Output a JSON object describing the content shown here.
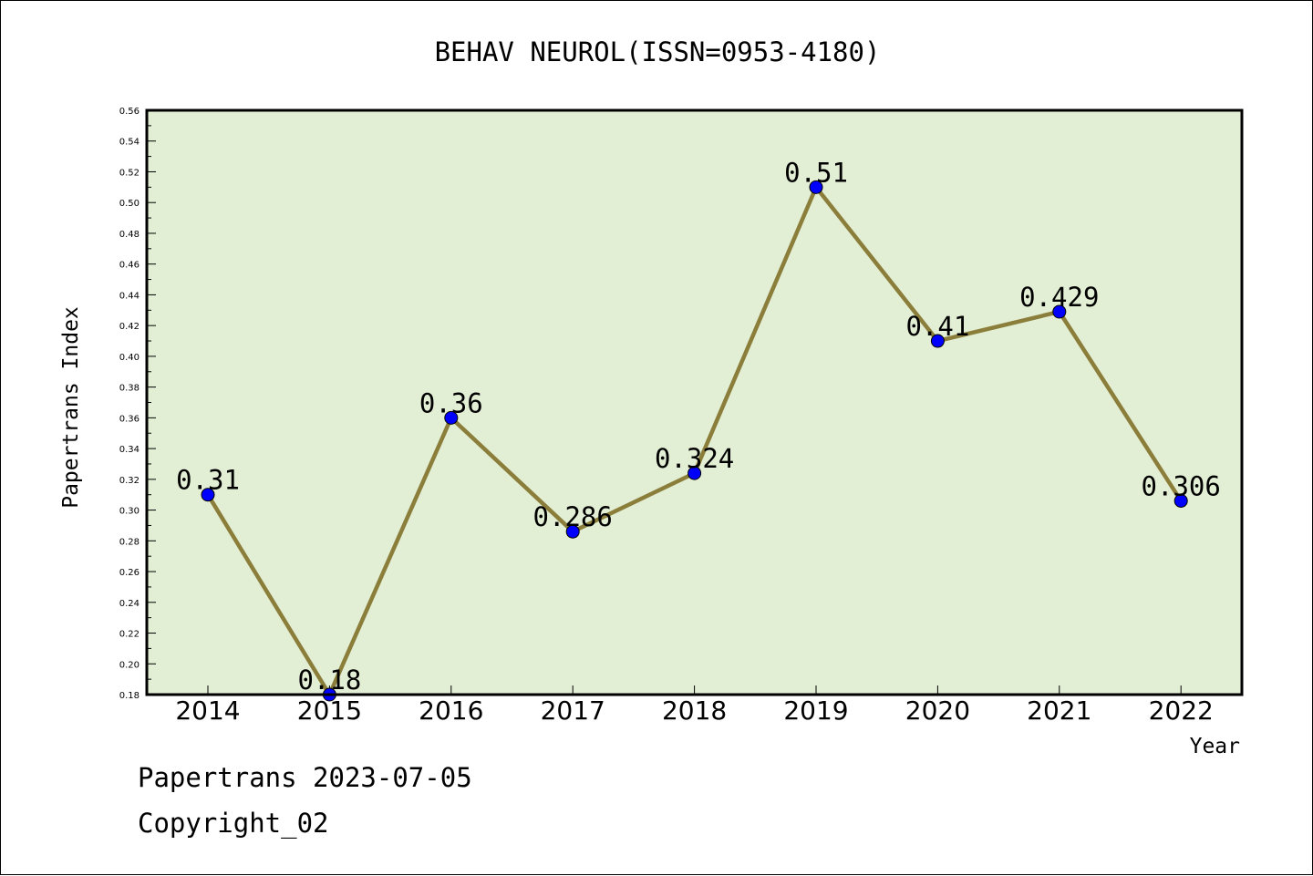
{
  "chart_data": {
    "type": "line",
    "title": "BEHAV NEUROL(ISSN=0953-4180)",
    "xlabel": "Year",
    "ylabel": "Papertrans Index",
    "categories": [
      "2014",
      "2015",
      "2016",
      "2017",
      "2018",
      "2019",
      "2020",
      "2021",
      "2022"
    ],
    "series": [
      {
        "values": [
          0.31,
          0.18,
          0.36,
          0.286,
          0.324,
          0.51,
          0.41,
          0.429,
          0.306
        ],
        "labels": [
          "0.31",
          "0.18",
          "0.36",
          "0.286",
          "0.324",
          "0.51",
          "0.41",
          "0.429",
          "0.306"
        ]
      }
    ],
    "ylim": [
      0.18,
      0.56
    ],
    "yticks": [
      "0.18",
      "0.20",
      "0.22",
      "0.24",
      "0.26",
      "0.28",
      "0.30",
      "0.32",
      "0.34",
      "0.36",
      "0.38",
      "0.40",
      "0.42",
      "0.44",
      "0.46",
      "0.48",
      "0.50",
      "0.52",
      "0.54",
      "0.56"
    ],
    "grid": false,
    "colors": {
      "plot_background": "#e2efd4",
      "line": "#8b7d3a",
      "marker": "#0000ff"
    }
  },
  "footer": {
    "line1": "Papertrans 2023-07-05",
    "line2": "Copyright_02"
  }
}
